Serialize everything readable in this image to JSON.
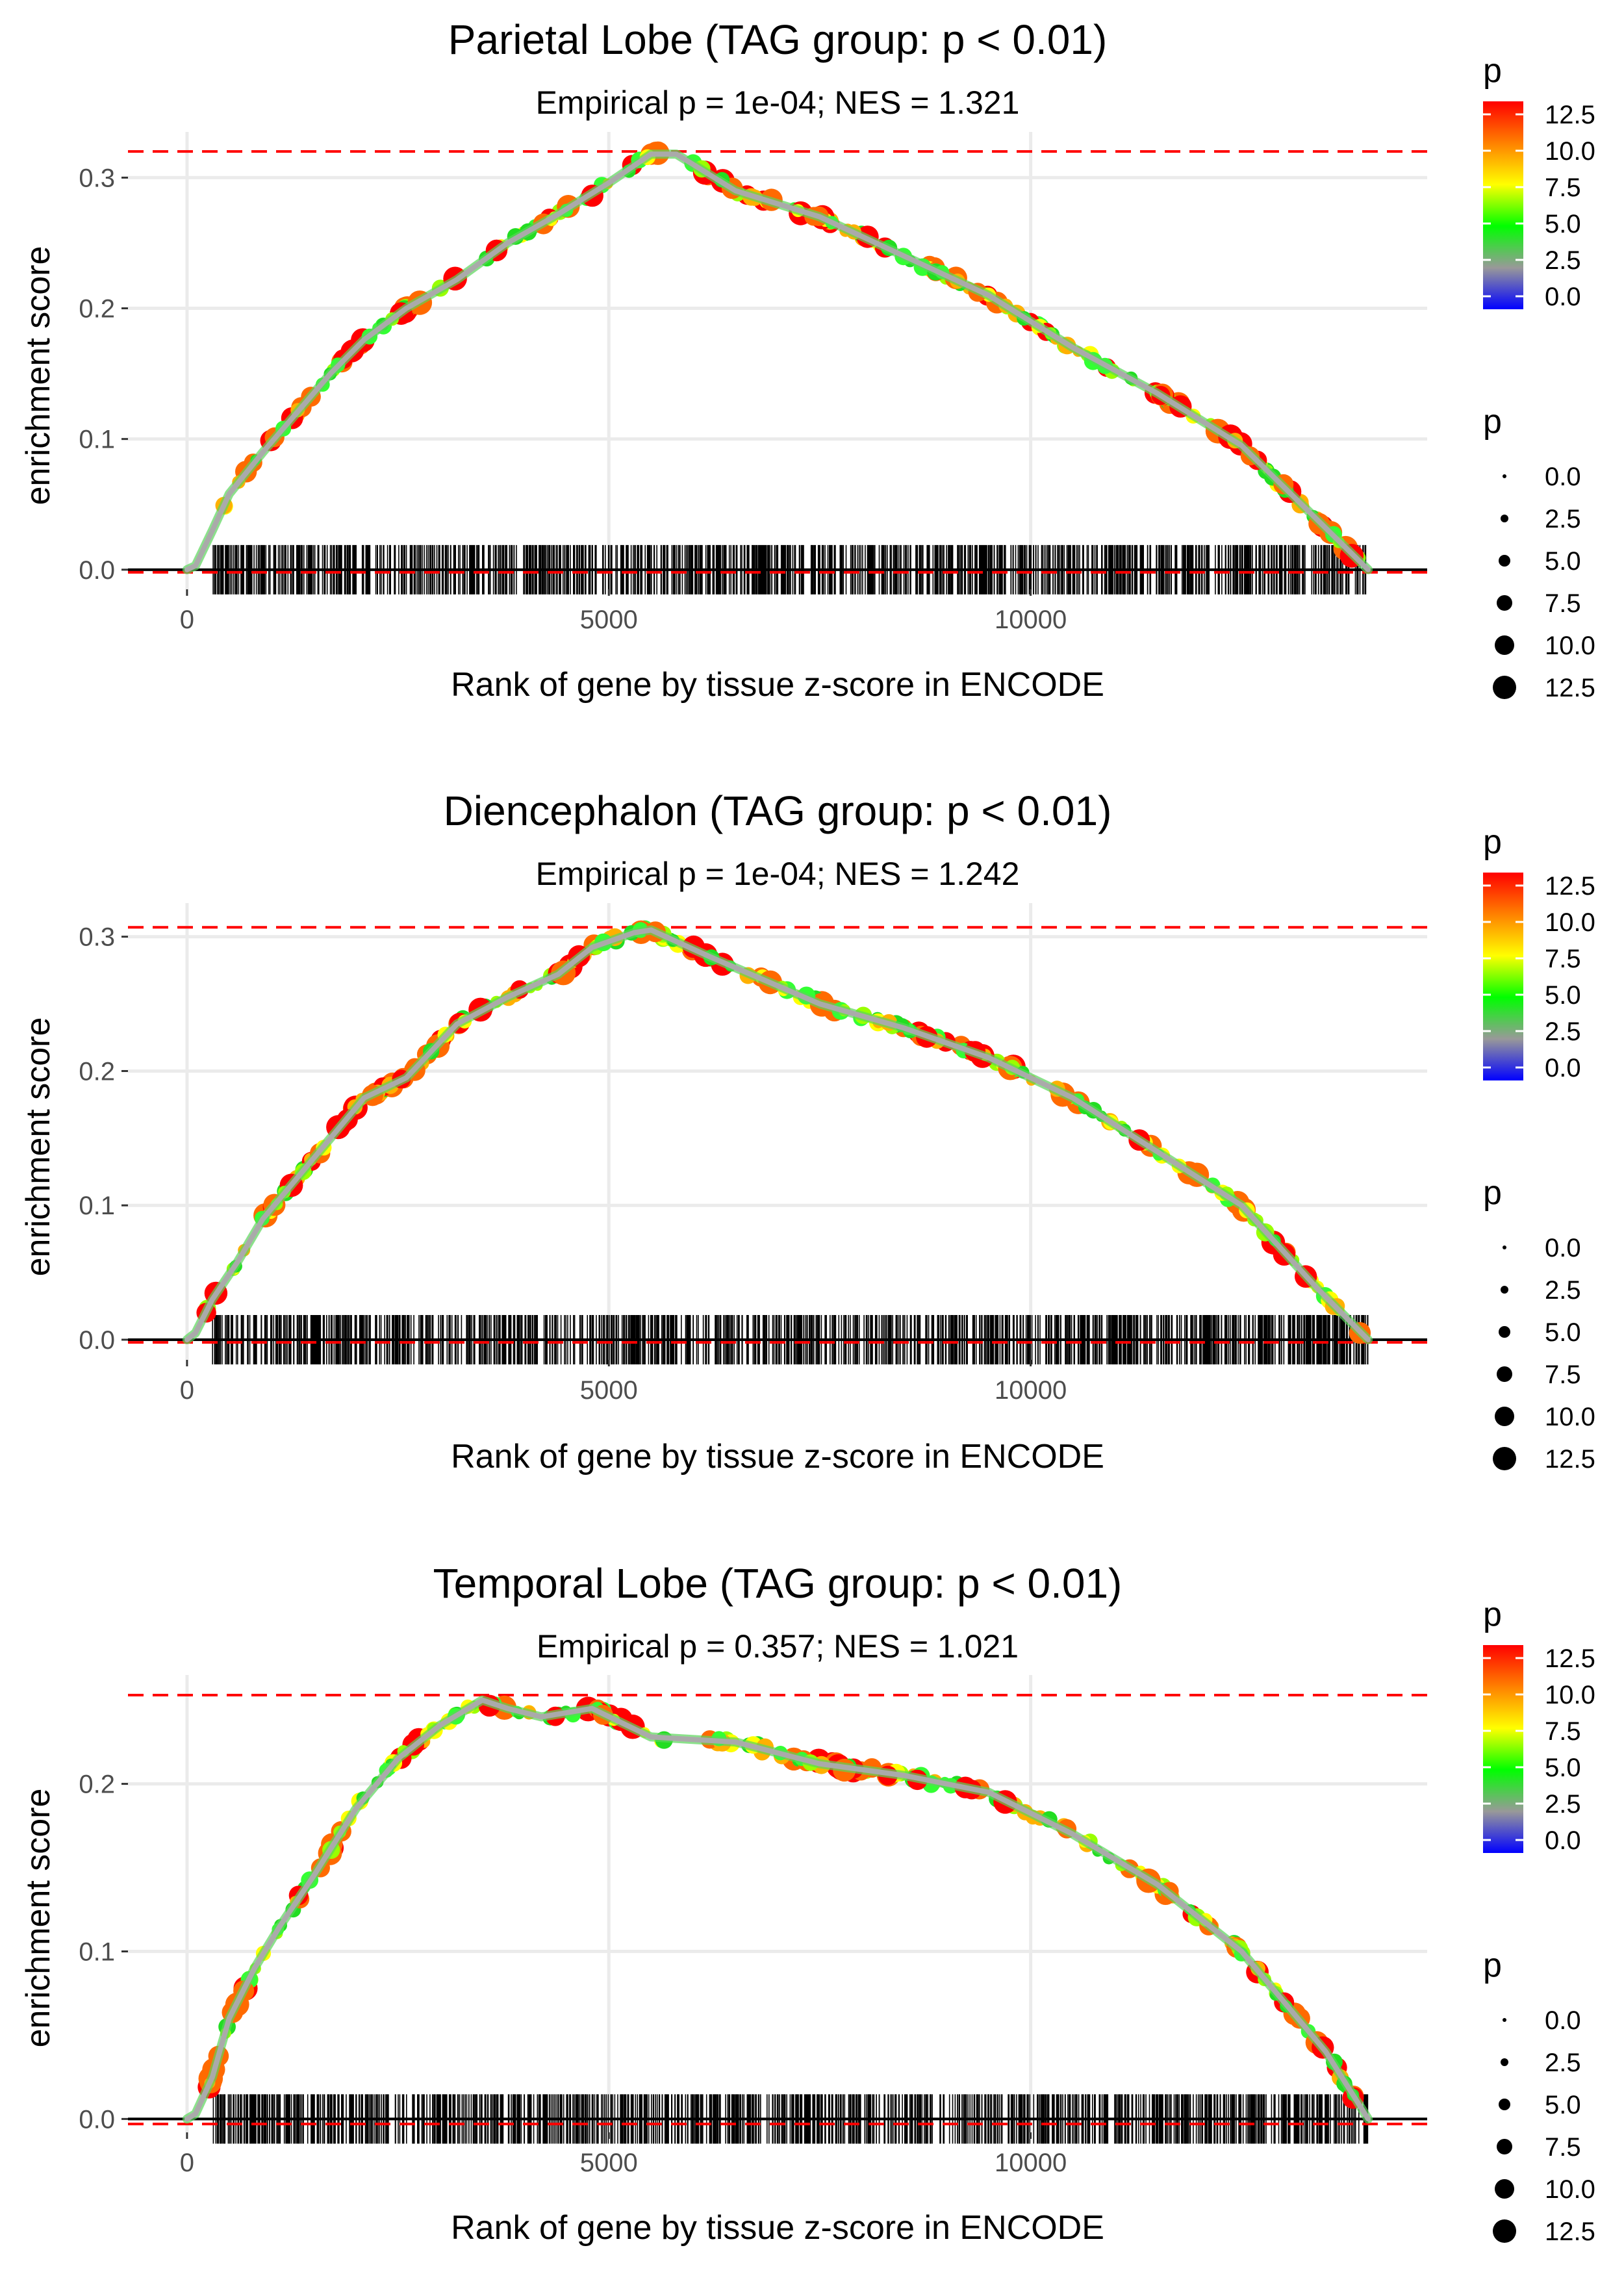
{
  "common": {
    "xlabel": "Rank of gene by tissue z-score in ENCODE",
    "ylabel": "enrichment score",
    "xticks": [
      0,
      5000,
      10000
    ],
    "xlim": [
      -700,
      14700
    ],
    "n_genes": 14000,
    "legend": {
      "color_title": "p",
      "color_ticks": [
        "12.5",
        "10.0",
        "7.5",
        "5.0",
        "2.5",
        "0.0"
      ],
      "color_stops": [
        "#0000ff",
        "#999999",
        "#00ff00",
        "#ffff00",
        "#ff8000",
        "#ff0000"
      ],
      "size_title": "p",
      "size_entries": [
        "0.0",
        "2.5",
        "5.0",
        "7.5",
        "10.0",
        "12.5"
      ]
    },
    "colors": {
      "reference_line": "#ff0000",
      "curve": "#aaaaaa",
      "grid": "#ebebeb",
      "rug": "#000000"
    }
  },
  "chart_data": [
    {
      "type": "line",
      "title": "Parietal Lobe (TAG group: p < 0.01)",
      "subtitle": "Empirical p = 1e-04; NES = 1.321",
      "xlabel": "Rank of gene by tissue z-score in ENCODE",
      "ylabel": "enrichment score",
      "ylim": [
        -0.015,
        0.335
      ],
      "yticks": [
        0.0,
        0.1,
        0.2,
        0.3
      ],
      "ytick_labels": [
        "0.0",
        "0.1",
        "0.2",
        "0.3"
      ],
      "max_es": 0.32,
      "min_es": -0.002,
      "curve_x": [
        0,
        100,
        300,
        500,
        900,
        1300,
        1700,
        2100,
        2600,
        3200,
        3800,
        4400,
        5000,
        5500,
        5800,
        6500,
        7500,
        8500,
        9500,
        10500,
        11500,
        12500,
        13400,
        14000
      ],
      "curve_y": [
        0.0,
        0.003,
        0.03,
        0.058,
        0.09,
        0.12,
        0.15,
        0.176,
        0.2,
        0.222,
        0.25,
        0.272,
        0.296,
        0.318,
        0.318,
        0.29,
        0.27,
        0.24,
        0.21,
        0.17,
        0.135,
        0.095,
        0.038,
        0.0
      ]
    },
    {
      "type": "line",
      "title": "Diencephalon (TAG group: p < 0.01)",
      "subtitle": "Empirical p = 1e-04; NES = 1.242",
      "xlabel": "Rank of gene by tissue z-score in ENCODE",
      "ylabel": "enrichment score",
      "ylim": [
        -0.015,
        0.325
      ],
      "yticks": [
        0.0,
        0.1,
        0.2,
        0.3
      ],
      "ytick_labels": [
        "0.0",
        "0.1",
        "0.2",
        "0.3"
      ],
      "max_es": 0.307,
      "min_es": -0.002,
      "curve_x": [
        0,
        100,
        300,
        600,
        900,
        1300,
        1700,
        2100,
        2600,
        3200,
        3800,
        4400,
        4800,
        5300,
        5500,
        6200,
        7500,
        8500,
        9500,
        10500,
        11500,
        12500,
        13400,
        14000
      ],
      "curve_y": [
        0.0,
        0.005,
        0.03,
        0.058,
        0.09,
        0.12,
        0.15,
        0.18,
        0.195,
        0.235,
        0.255,
        0.272,
        0.292,
        0.303,
        0.305,
        0.285,
        0.25,
        0.232,
        0.21,
        0.18,
        0.14,
        0.1,
        0.038,
        0.0
      ]
    },
    {
      "type": "line",
      "title": "Temporal Lobe (TAG group: p < 0.01)",
      "subtitle": "Empirical p = 0.357; NES = 1.021",
      "xlabel": "Rank of gene by tissue z-score in ENCODE",
      "ylabel": "enrichment score",
      "ylim": [
        -0.008,
        0.265
      ],
      "yticks": [
        0.0,
        0.1,
        0.2
      ],
      "ytick_labels": [
        "0.0",
        "0.1",
        "0.2"
      ],
      "max_es": 0.253,
      "min_es": -0.003,
      "curve_x": [
        0,
        100,
        300,
        500,
        800,
        1100,
        1500,
        2000,
        2500,
        3000,
        3500,
        3800,
        4200,
        4800,
        5500,
        6500,
        7500,
        8500,
        9500,
        10500,
        11500,
        12500,
        13500,
        14000
      ],
      "curve_y": [
        0.0,
        0.003,
        0.025,
        0.06,
        0.09,
        0.115,
        0.145,
        0.185,
        0.215,
        0.235,
        0.25,
        0.245,
        0.24,
        0.245,
        0.228,
        0.225,
        0.212,
        0.205,
        0.195,
        0.17,
        0.14,
        0.1,
        0.04,
        0.0
      ]
    }
  ]
}
